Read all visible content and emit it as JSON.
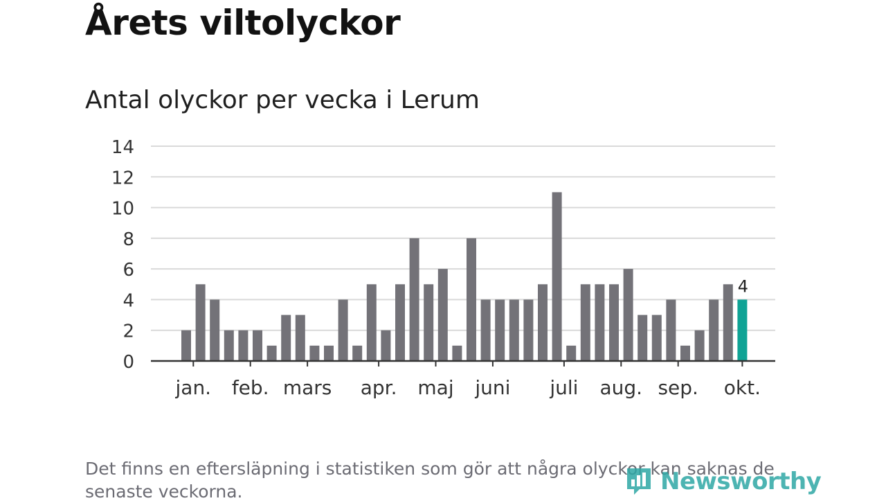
{
  "header": {
    "title": "Årets viltolyckor",
    "subtitle": "Antal olyckor per vecka i Lerum"
  },
  "chart_data": {
    "type": "bar",
    "title": "Antal olyckor per vecka i Lerum",
    "xlabel": "",
    "ylabel": "",
    "ylim": [
      0,
      14
    ],
    "yticks": [
      0,
      2,
      4,
      6,
      8,
      10,
      12,
      14
    ],
    "grid": true,
    "values": [
      2,
      5,
      4,
      2,
      2,
      2,
      1,
      3,
      3,
      1,
      1,
      4,
      1,
      5,
      2,
      5,
      8,
      5,
      6,
      1,
      8,
      4,
      4,
      4,
      4,
      5,
      11,
      1,
      5,
      5,
      5,
      6,
      3,
      3,
      4,
      1,
      2,
      4,
      5,
      4
    ],
    "highlight_index": 39,
    "highlight_label": "4",
    "month_labels": [
      {
        "label": "jan.",
        "week": 1.5
      },
      {
        "label": "feb.",
        "week": 5.5
      },
      {
        "label": "mars",
        "week": 9.5
      },
      {
        "label": "apr.",
        "week": 14.5
      },
      {
        "label": "maj",
        "week": 18.5
      },
      {
        "label": "juni",
        "week": 22.5
      },
      {
        "label": "juli",
        "week": 27.5
      },
      {
        "label": "aug.",
        "week": 31.5
      },
      {
        "label": "sep.",
        "week": 35.5
      },
      {
        "label": "okt.",
        "week": 40
      }
    ]
  },
  "colors": {
    "bar": "#737278",
    "highlight": "#0fa395",
    "grid": "#d9d9d9",
    "axis": "#333333",
    "brand": "#2ea7a5"
  },
  "footer": {
    "note": "Det finns en eftersläpning i statistiken som gör att några olyckor kan saknas de senaste veckorna.",
    "brand": "Newsworthy"
  }
}
